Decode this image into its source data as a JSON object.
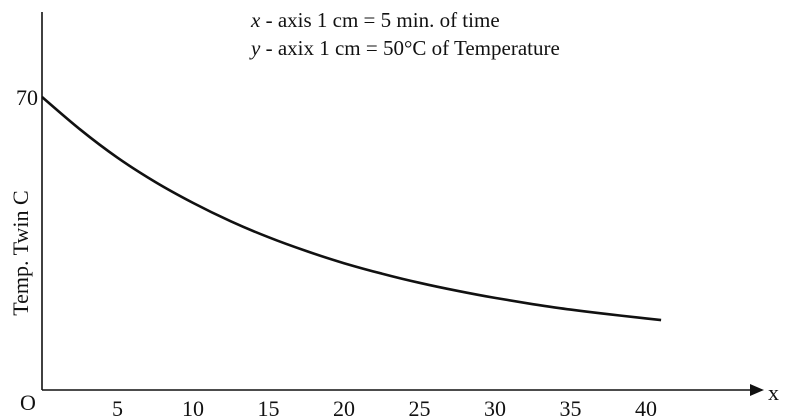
{
  "chart_data": {
    "type": "line",
    "annotations": [
      {
        "variable": "x",
        "text": " - axis 1 cm = 5 min. of time"
      },
      {
        "variable": "y",
        "text": " - axix 1 cm = 50°C of Temperature"
      }
    ],
    "xlabel": "x",
    "ylabel": "Temp. Twin C",
    "origin_label": "O",
    "x_ticks": [
      5,
      10,
      15,
      20,
      25,
      30,
      35,
      40
    ],
    "y_ticks": [
      70
    ],
    "xlim": [
      0,
      48
    ],
    "ylim": [
      0,
      85
    ],
    "grid": false,
    "series": [
      {
        "x": [
          0,
          2.5,
          5,
          7.5,
          10,
          12.5,
          15,
          17.5,
          20,
          22.5,
          25,
          27.5,
          30,
          32.5,
          35,
          37.5,
          40,
          41
        ],
        "y": [
          70,
          62.3,
          55.5,
          49.7,
          44.7,
          40.3,
          36.5,
          33.2,
          30.3,
          27.8,
          25.6,
          23.7,
          22.0,
          20.5,
          19.2,
          18.1,
          17.1,
          16.7
        ]
      }
    ]
  }
}
